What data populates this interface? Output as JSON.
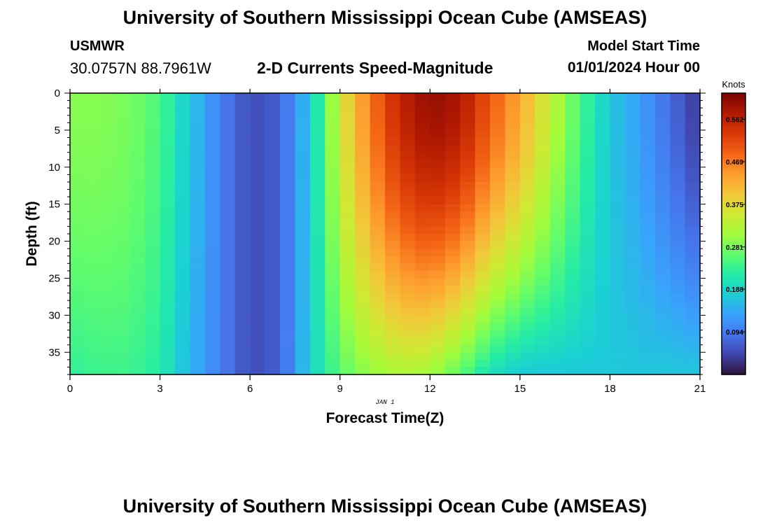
{
  "header": {
    "title": "University of Southern Mississippi Ocean Cube (AMSEAS)",
    "station": "USMWR",
    "coordinates": "30.0757N  88.7961W",
    "subtitle": "2-D Currents Speed-Magnitude",
    "model_start_label": "Model Start Time",
    "model_start_value": "01/01/2024 Hour 00"
  },
  "footer": {
    "title": "University of Southern Mississippi Ocean Cube (AMSEAS)"
  },
  "chart_data": {
    "type": "heatmap",
    "xlabel": "Forecast Time(Z)",
    "ylabel": "Depth (ft)",
    "date_label": "JAN 1",
    "x_range": [
      0,
      21
    ],
    "y_range": [
      0,
      38
    ],
    "x_ticks": [
      "0",
      "3",
      "6",
      "9",
      "12",
      "15",
      "18",
      "21"
    ],
    "y_ticks": [
      "0",
      "5",
      "10",
      "15",
      "20",
      "25",
      "30",
      "35"
    ],
    "colorbar": {
      "unit_label": "Knots",
      "min": 0.0,
      "max": 0.62,
      "ticks": [
        "0.562",
        "0.469",
        "0.375",
        "0.281",
        "0.188",
        "0.094"
      ],
      "colors": [
        "#30123b",
        "#4145ab",
        "#4675ed",
        "#39a2fc",
        "#1bcfd4",
        "#24eca6",
        "#61fc6c",
        "#a4fc3b",
        "#d1e834",
        "#f3c63a",
        "#fe9b2d",
        "#f36315",
        "#d93806",
        "#b11901",
        "#7a0403"
      ]
    },
    "surface_profile_knots": {
      "hours": [
        0,
        1,
        2,
        3,
        4,
        5,
        6,
        7,
        8,
        9,
        10,
        11,
        12,
        13,
        14,
        15,
        16,
        17,
        18,
        19,
        20,
        21
      ],
      "values": [
        0.29,
        0.29,
        0.28,
        0.25,
        0.17,
        0.1,
        0.05,
        0.07,
        0.17,
        0.35,
        0.47,
        0.56,
        0.6,
        0.58,
        0.5,
        0.43,
        0.34,
        0.25,
        0.17,
        0.13,
        0.08,
        0.03
      ]
    },
    "bottom_profile_knots": {
      "hours": [
        0,
        1,
        2,
        3,
        4,
        5,
        6,
        7,
        8,
        9,
        10,
        11,
        12,
        13,
        14,
        15,
        16,
        17,
        18,
        19,
        20,
        21
      ],
      "values": [
        0.23,
        0.24,
        0.24,
        0.22,
        0.15,
        0.1,
        0.05,
        0.07,
        0.18,
        0.26,
        0.3,
        0.32,
        0.31,
        0.26,
        0.2,
        0.17,
        0.17,
        0.17,
        0.17,
        0.17,
        0.17,
        0.17
      ]
    }
  }
}
